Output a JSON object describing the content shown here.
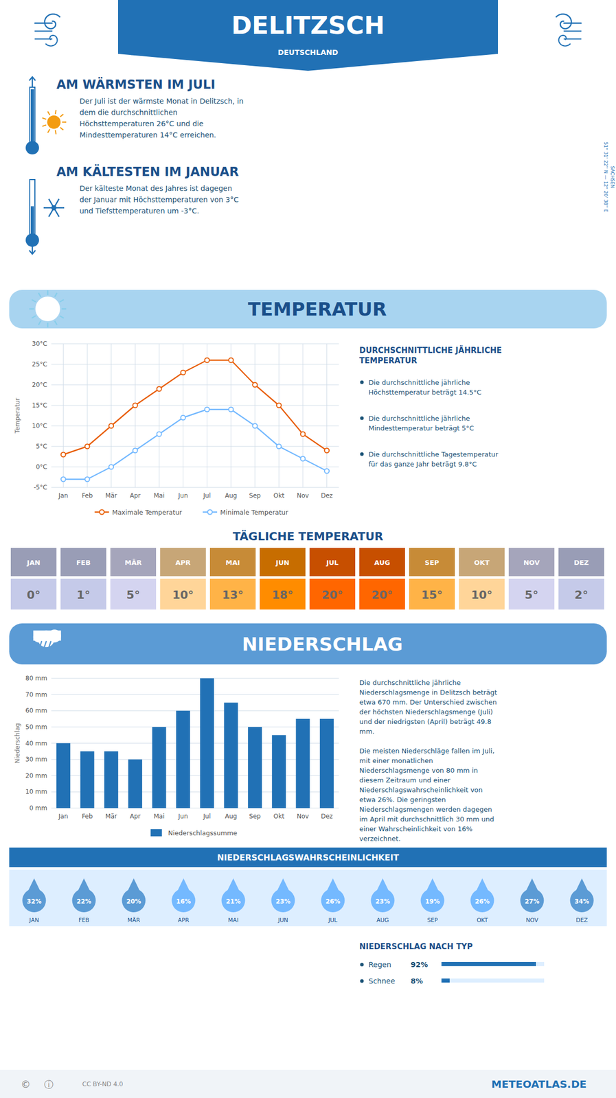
{
  "title": "DELITZSCH",
  "subtitle": "DEUTSCHLAND",
  "annotations": [
    "AM WÄRMSTEN IM JULI",
    "Der Juli ist der wärmste Monat in Delitzsch, in\ndem die durchschnittlichen\nHöchsttemperaturen 26°C und die\nMindesttemperaturen 14°C erreichen.",
    "AM KÄLTESTEN IM JANUAR",
    "Der kälteste Monat des Jahres ist dagegen\nder Januar mit Höchsttemperaturen von 3°C\nund Tiefsttemperaturen um -3°C.",
    "51° 31' 22'' N  —  12° 20' 38'' E",
    "SACHSEN",
    "METEOATLAS.DE",
    "©",
    "ⓘ",
    "CC BY-ND 4.0"
  ],
  "chart_data": [
    {
      "type": "line",
      "title": "TEMPERATUR",
      "ylabel": "Temperatur",
      "categories": [
        "Jan",
        "Feb",
        "Mär",
        "Apr",
        "Mai",
        "Jun",
        "Jul",
        "Aug",
        "Sep",
        "Okt",
        "Nov",
        "Dez"
      ],
      "series": [
        {
          "name": "Maximale Temperatur",
          "color": "#e85d04",
          "marker": "o",
          "values": [
            3,
            5,
            10,
            15,
            19,
            23,
            26,
            26,
            20,
            15,
            8,
            4
          ]
        },
        {
          "name": "Minimale Temperatur",
          "color": "#74b9ff",
          "marker": "o",
          "values": [
            -3,
            -3,
            0,
            4,
            8,
            12,
            14,
            14,
            10,
            5,
            2,
            -1
          ]
        }
      ],
      "ylim": [
        -5,
        30
      ],
      "yticks": [
        {
          "value": -5,
          "label": "-5°C"
        },
        {
          "value": 0,
          "label": "0°C"
        },
        {
          "value": 5,
          "label": "5°C"
        },
        {
          "value": 10,
          "label": "10°C"
        },
        {
          "value": 15,
          "label": "15°C"
        },
        {
          "value": 20,
          "label": "20°C"
        },
        {
          "value": 25,
          "label": "25°C"
        },
        {
          "value": 30,
          "label": "30°C"
        }
      ],
      "grid": true,
      "legend": "bottom",
      "annotations": [
        "DURCHSCHNITTLICHE JÄHRLICHE\nTEMPERATUR",
        "Die durchschnittliche jährliche\nHöchsttemperatur beträgt 14.5°C",
        "Die durchschnittliche jährliche\nMindesttemperatur beträgt 5°C",
        "Die durchschnittliche Tagestemperatur\nfür das ganze Jahr beträgt 9.8°C"
      ]
    },
    {
      "type": "table",
      "title": "TÄGLICHE TEMPERATUR",
      "categories": [
        "JAN",
        "FEB",
        "MÄR",
        "APR",
        "MAI",
        "JUN",
        "JUL",
        "AUG",
        "SEP",
        "OKT",
        "NOV",
        "DEZ"
      ],
      "values": [
        0,
        1,
        5,
        10,
        13,
        18,
        20,
        20,
        15,
        10,
        5,
        2
      ],
      "value_labels": [
        "0°",
        "1°",
        "5°",
        "10°",
        "13°",
        "18°",
        "20°",
        "20°",
        "15°",
        "10°",
        "5°",
        "2°"
      ],
      "colors": [
        "#c5cae9",
        "#c5cae9",
        "#d4d4f0",
        "#ffd599",
        "#ffb347",
        "#ff8c00",
        "#ff6600",
        "#ff6600",
        "#ffb347",
        "#ffd599",
        "#d4d4f0",
        "#c5cae9"
      ],
      "data_labels": true
    },
    {
      "type": "bar",
      "title": "NIEDERSCHLAG",
      "ylabel": "Niederschlag",
      "categories": [
        "Jan",
        "Feb",
        "Mär",
        "Apr",
        "Mai",
        "Jun",
        "Jul",
        "Aug",
        "Sep",
        "Okt",
        "Nov",
        "Dez"
      ],
      "series": [
        {
          "name": "Niederschlagssumme",
          "color": "#2171b5",
          "values": [
            40,
            35,
            35,
            30,
            50,
            60,
            80,
            65,
            50,
            45,
            55,
            55
          ]
        }
      ],
      "ylim": [
        0,
        80
      ],
      "yticks": [
        {
          "value": 0,
          "label": "0 mm"
        },
        {
          "value": 10,
          "label": "10 mm"
        },
        {
          "value": 20,
          "label": "20 mm"
        },
        {
          "value": 30,
          "label": "30 mm"
        },
        {
          "value": 40,
          "label": "40 mm"
        },
        {
          "value": 50,
          "label": "50 mm"
        },
        {
          "value": 60,
          "label": "60 mm"
        },
        {
          "value": 70,
          "label": "70 mm"
        },
        {
          "value": 80,
          "label": "80 mm"
        }
      ],
      "grid": "y",
      "legend": "bottom",
      "annotations": [
        "Die durchschnittliche jährliche\nNiederschlagsmenge in Delitzsch beträgt\netwa 670 mm. Der Unterschied zwischen\nder höchsten Niederschlagsmenge (Juli)\nund der niedrigsten (April) beträgt 49.8\nmm.\n\nDie meisten Niederschläge fallen im Juli,\nmit einer monatlichen\nNiederschlagsmenge von 80 mm in\ndiesem Zeitraum und einer\nNiederschlagswahrscheinlichkeit von\netwa 26%. Die geringsten\nNiederschlagsmengen werden dagegen\nim April mit durchschnittlich 30 mm und\neiner Wahrscheinlichkeit von 16%\nverzeichnet."
      ]
    },
    {
      "type": "pictogram",
      "title": "NIEDERSCHLAGSWAHRSCHEINLICHKEIT",
      "categories": [
        "JAN",
        "FEB",
        "MÄR",
        "APR",
        "MAI",
        "JUN",
        "JUL",
        "AUG",
        "SEP",
        "OKT",
        "NOV",
        "DEZ"
      ],
      "values": [
        32,
        22,
        20,
        16,
        21,
        23,
        26,
        23,
        19,
        26,
        27,
        34
      ],
      "value_labels": [
        "32%",
        "22%",
        "20%",
        "16%",
        "21%",
        "23%",
        "26%",
        "23%",
        "19%",
        "26%",
        "27%",
        "34%"
      ],
      "colors": [
        "#5b9bd5",
        "#5b9bd5",
        "#5b9bd5",
        "#74b9ff",
        "#74b9ff",
        "#74b9ff",
        "#74b9ff",
        "#74b9ff",
        "#74b9ff",
        "#74b9ff",
        "#5b9bd5",
        "#5b9bd5"
      ],
      "data_labels": true
    },
    {
      "type": "list",
      "title": "NIEDERSCHLAG NACH TYP",
      "categories": [
        "Regen",
        "Schnee"
      ],
      "values": [
        92,
        8
      ],
      "value_labels": [
        "92%",
        "8%"
      ],
      "xlim": [
        0,
        100
      ],
      "data_labels": true
    }
  ]
}
